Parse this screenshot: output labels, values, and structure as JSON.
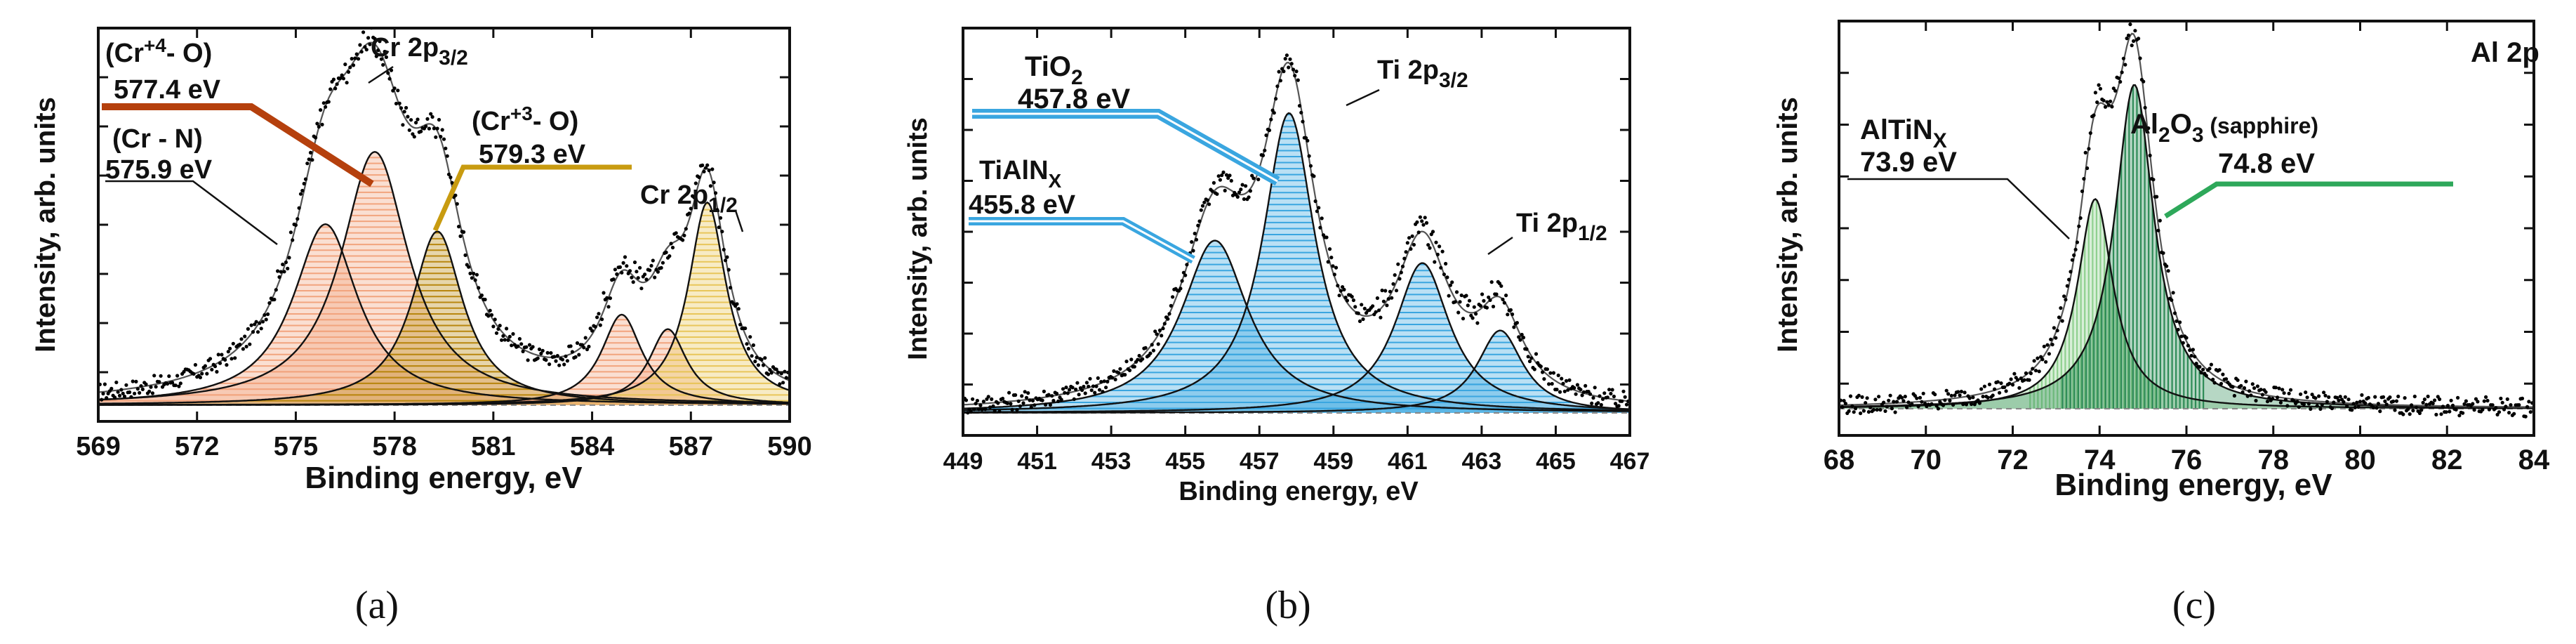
{
  "colors": {
    "cr_n_fill": "#f2a47e",
    "cr4_line": "#b5400d",
    "cr3_fill": "#b8870f",
    "cr3_line": "#c89b10",
    "cr12_fill": "#e8c65a",
    "ti_fill": "#3aa6e0",
    "ti_line": "#1e90d8",
    "al2o3_fill": "#2e8b57",
    "altin_fill": "#8fd08f",
    "al_line": "#2ea85a",
    "data_point": "#000000"
  },
  "chart_data": [
    {
      "id": "a",
      "caption": "(a)",
      "type": "line",
      "xlabel": "Binding energy, eV",
      "ylabel": "Intensity, arb. units",
      "xlim": [
        569,
        590
      ],
      "ylim": [
        0,
        1
      ],
      "xticks": [
        "569",
        "572",
        "575",
        "578",
        "581",
        "584",
        "587",
        "590"
      ],
      "tick_values": [
        569,
        572,
        575,
        578,
        581,
        584,
        587,
        590
      ],
      "baseline": 0.045,
      "components": [
        {
          "name": "Cr-N",
          "center": 575.9,
          "amp": 0.5,
          "width": 1.2,
          "fill": "cr_n_fill"
        },
        {
          "name": "Cr4-O",
          "center": 577.4,
          "amp": 0.7,
          "width": 1.25,
          "fill": "cr_n_fill"
        },
        {
          "name": "Cr3-O",
          "center": 579.3,
          "amp": 0.48,
          "width": 0.95,
          "fill": "cr3_fill"
        },
        {
          "name": "CrN 2p1/2",
          "center": 584.9,
          "amp": 0.25,
          "width": 0.75,
          "fill": "cr_n_fill"
        },
        {
          "name": "Cr4 2p1/2",
          "center": 586.3,
          "amp": 0.21,
          "width": 0.7,
          "fill": "cr_n_fill"
        },
        {
          "name": "Cr3 2p1/2",
          "center": 587.5,
          "amp": 0.56,
          "width": 0.7,
          "fill": "cr12_fill"
        }
      ],
      "labels": {
        "cr_n": "(Cr - N)",
        "cr_n_ev": "575.9 eV",
        "cr4_prefix": "(Cr",
        "cr4_sup": "+4",
        "cr4_suffix": "- O)",
        "cr4_ev": "577.4 eV",
        "cr3_prefix": "(Cr",
        "cr3_sup": "+3",
        "cr3_suffix": "- O)",
        "cr3_ev": "579.3 eV",
        "p32_main": "Cr 2p",
        "p32_sub": "3/2",
        "p12_main": "Cr 2p",
        "p12_sub": "1/2"
      }
    },
    {
      "id": "b",
      "caption": "(b)",
      "type": "line",
      "xlabel": "Binding energy, eV",
      "ylabel": "Intensity, arb. units",
      "xlim": [
        449,
        467
      ],
      "ylim": [
        0,
        1
      ],
      "xticks": [
        "449",
        "451",
        "453",
        "455",
        "457",
        "459",
        "461",
        "463",
        "465",
        "467"
      ],
      "tick_values": [
        449,
        451,
        453,
        455,
        457,
        459,
        461,
        463,
        465,
        467
      ],
      "baseline": 0.06,
      "components": [
        {
          "name": "TiAlNx 2p3/2",
          "center": 455.8,
          "amp": 0.46,
          "width": 1.1,
          "fill": "ti_fill"
        },
        {
          "name": "TiO2 2p3/2",
          "center": 457.8,
          "amp": 0.8,
          "width": 0.85,
          "fill": "ti_fill"
        },
        {
          "name": "TiAlNx 2p1/2",
          "center": 461.4,
          "amp": 0.4,
          "width": 0.9,
          "fill": "ti_fill"
        },
        {
          "name": "TiO2 2p1/2",
          "center": 463.5,
          "amp": 0.22,
          "width": 0.75,
          "fill": "ti_fill"
        }
      ],
      "labels": {
        "tialn_main": "TiAlN",
        "tialn_sub": "X",
        "tialn_ev": "455.8 eV",
        "tio2_main": "TiO",
        "tio2_sub": "2",
        "tio2_ev": "457.8 eV",
        "p32_main": "Ti 2p",
        "p32_sub": "3/2",
        "p12_main": "Ti 2p",
        "p12_sub": "1/2"
      }
    },
    {
      "id": "c",
      "caption": "(c)",
      "type": "line",
      "title": "Al 2p",
      "xlabel": "Binding energy, eV",
      "ylabel": "Intensity, arb. units",
      "xlim": [
        68,
        84
      ],
      "ylim": [
        0,
        1
      ],
      "xticks": [
        "68",
        "70",
        "72",
        "74",
        "76",
        "78",
        "80",
        "82",
        "84"
      ],
      "tick_values": [
        68,
        70,
        72,
        74,
        76,
        78,
        80,
        82,
        84
      ],
      "baseline": 0.07,
      "components": [
        {
          "name": "AlTiNx",
          "center": 73.9,
          "amp": 0.55,
          "width": 0.5,
          "fill": "altin_fill"
        },
        {
          "name": "Al2O3",
          "center": 74.8,
          "amp": 0.85,
          "width": 0.55,
          "fill": "al2o3_fill"
        }
      ],
      "labels": {
        "altin_main": "AlTiN",
        "altin_sub": "X",
        "altin_ev": "73.9 eV",
        "al2o3_a": "Al",
        "al2o3_2": "2",
        "al2o3_o": "O",
        "al2o3_3": "3",
        "al2o3_note": " (sapphire)",
        "al2o3_ev": "74.8 eV"
      }
    }
  ]
}
